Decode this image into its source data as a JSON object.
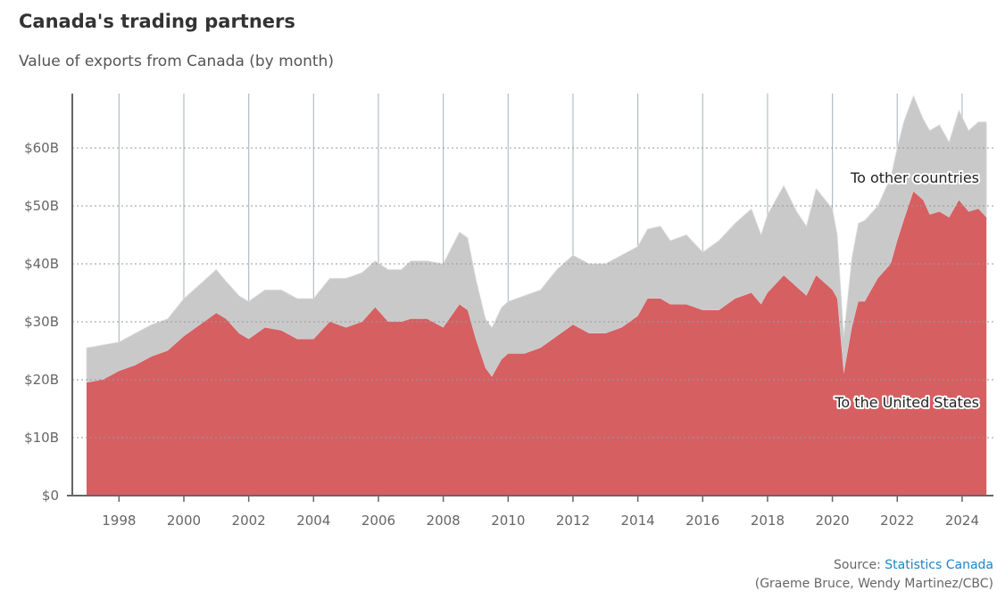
{
  "header": {
    "title": "Canada's trading partners",
    "subtitle": "Value of exports from Canada (by month)"
  },
  "source": {
    "prefix": "Source: ",
    "link_label": "Statistics Canada",
    "credit": "(Graeme Bruce, Wendy Martinez/CBC)"
  },
  "colors": {
    "us_area": "#d65f62",
    "other_area": "#c9c9c9",
    "other_area_light": "#dddddd",
    "axis": "#666666",
    "gridline": "#999999",
    "vertical_grid": "#b4bcc4",
    "link": "#1a85c7"
  },
  "chart_data": {
    "type": "area",
    "stacked": true,
    "x_unit": "year (decimal)",
    "xlim": [
      1997,
      2024.75
    ],
    "ylim": [
      0,
      70
    ],
    "y_unit": "billions CAD",
    "x_ticks": [
      1998,
      2000,
      2002,
      2004,
      2006,
      2008,
      2010,
      2012,
      2014,
      2016,
      2018,
      2020,
      2022,
      2024
    ],
    "x_tick_labels": [
      "1998",
      "2000",
      "2002",
      "2004",
      "2006",
      "2008",
      "2010",
      "2012",
      "2014",
      "2016",
      "2018",
      "2020",
      "2022",
      "2024"
    ],
    "y_ticks": [
      0,
      10,
      20,
      30,
      40,
      50,
      60
    ],
    "y_tick_labels": [
      "$0",
      "$10B",
      "$20B",
      "$30B",
      "$40B",
      "$50B",
      "$60B"
    ],
    "grid": {
      "horizontal": "dashed",
      "vertical": "solid at even years"
    },
    "annotations": [
      {
        "text": "To other countries",
        "series": "other"
      },
      {
        "text": "To the United States",
        "series": "us"
      }
    ],
    "series": [
      {
        "id": "us",
        "points": [
          [
            1997.0,
            19.5
          ],
          [
            1997.5,
            20.0
          ],
          [
            1998.0,
            21.5
          ],
          [
            1998.5,
            22.5
          ],
          [
            1999.0,
            24.0
          ],
          [
            1999.5,
            25.0
          ],
          [
            2000.0,
            27.5
          ],
          [
            2000.5,
            29.5
          ],
          [
            2001.0,
            31.5
          ],
          [
            2001.3,
            30.5
          ],
          [
            2001.7,
            28.0
          ],
          [
            2002.0,
            27.0
          ],
          [
            2002.5,
            29.0
          ],
          [
            2003.0,
            28.5
          ],
          [
            2003.5,
            27.0
          ],
          [
            2004.0,
            27.0
          ],
          [
            2004.5,
            30.0
          ],
          [
            2005.0,
            29.0
          ],
          [
            2005.5,
            30.0
          ],
          [
            2005.9,
            32.5
          ],
          [
            2006.3,
            30.0
          ],
          [
            2006.7,
            30.0
          ],
          [
            2007.0,
            30.5
          ],
          [
            2007.5,
            30.5
          ],
          [
            2008.0,
            29.0
          ],
          [
            2008.5,
            33.0
          ],
          [
            2008.75,
            32.0
          ],
          [
            2009.0,
            27.0
          ],
          [
            2009.3,
            22.0
          ],
          [
            2009.5,
            20.5
          ],
          [
            2009.8,
            23.5
          ],
          [
            2010.0,
            24.5
          ],
          [
            2010.5,
            24.5
          ],
          [
            2011.0,
            25.5
          ],
          [
            2011.5,
            27.5
          ],
          [
            2012.0,
            29.5
          ],
          [
            2012.5,
            28.0
          ],
          [
            2013.0,
            28.0
          ],
          [
            2013.5,
            29.0
          ],
          [
            2014.0,
            31.0
          ],
          [
            2014.3,
            34.0
          ],
          [
            2014.7,
            34.0
          ],
          [
            2015.0,
            33.0
          ],
          [
            2015.5,
            33.0
          ],
          [
            2016.0,
            32.0
          ],
          [
            2016.5,
            32.0
          ],
          [
            2017.0,
            34.0
          ],
          [
            2017.5,
            35.0
          ],
          [
            2017.8,
            33.0
          ],
          [
            2018.0,
            35.0
          ],
          [
            2018.5,
            38.0
          ],
          [
            2018.9,
            36.0
          ],
          [
            2019.2,
            34.5
          ],
          [
            2019.5,
            38.0
          ],
          [
            2020.0,
            35.5
          ],
          [
            2020.15,
            34.0
          ],
          [
            2020.35,
            21.0
          ],
          [
            2020.6,
            29.0
          ],
          [
            2020.8,
            33.5
          ],
          [
            2021.0,
            33.5
          ],
          [
            2021.4,
            37.5
          ],
          [
            2021.8,
            40.0
          ],
          [
            2022.0,
            44.0
          ],
          [
            2022.2,
            47.5
          ],
          [
            2022.5,
            52.5
          ],
          [
            2022.8,
            51.0
          ],
          [
            2023.0,
            48.5
          ],
          [
            2023.3,
            49.0
          ],
          [
            2023.6,
            48.0
          ],
          [
            2023.9,
            51.0
          ],
          [
            2024.2,
            49.0
          ],
          [
            2024.5,
            49.5
          ],
          [
            2024.75,
            48.0
          ]
        ]
      },
      {
        "id": "other",
        "points": [
          [
            1997.0,
            25.5
          ],
          [
            1997.5,
            26.0
          ],
          [
            1998.0,
            26.5
          ],
          [
            1998.5,
            28.0
          ],
          [
            1999.0,
            29.5
          ],
          [
            1999.5,
            30.5
          ],
          [
            2000.0,
            34.0
          ],
          [
            2000.5,
            36.5
          ],
          [
            2001.0,
            39.0
          ],
          [
            2001.3,
            37.0
          ],
          [
            2001.7,
            34.5
          ],
          [
            2002.0,
            33.5
          ],
          [
            2002.5,
            35.5
          ],
          [
            2003.0,
            35.5
          ],
          [
            2003.5,
            34.0
          ],
          [
            2004.0,
            34.0
          ],
          [
            2004.5,
            37.5
          ],
          [
            2005.0,
            37.5
          ],
          [
            2005.5,
            38.5
          ],
          [
            2005.9,
            40.5
          ],
          [
            2006.3,
            39.0
          ],
          [
            2006.7,
            39.0
          ],
          [
            2007.0,
            40.5
          ],
          [
            2007.5,
            40.5
          ],
          [
            2008.0,
            40.0
          ],
          [
            2008.5,
            45.5
          ],
          [
            2008.75,
            44.5
          ],
          [
            2009.0,
            37.5
          ],
          [
            2009.3,
            30.5
          ],
          [
            2009.5,
            29.0
          ],
          [
            2009.8,
            32.5
          ],
          [
            2010.0,
            33.5
          ],
          [
            2010.5,
            34.5
          ],
          [
            2011.0,
            35.5
          ],
          [
            2011.5,
            39.0
          ],
          [
            2012.0,
            41.5
          ],
          [
            2012.5,
            40.0
          ],
          [
            2013.0,
            40.0
          ],
          [
            2013.5,
            41.5
          ],
          [
            2014.0,
            43.0
          ],
          [
            2014.3,
            46.0
          ],
          [
            2014.7,
            46.5
          ],
          [
            2015.0,
            44.0
          ],
          [
            2015.5,
            45.0
          ],
          [
            2016.0,
            42.0
          ],
          [
            2016.5,
            44.0
          ],
          [
            2017.0,
            47.0
          ],
          [
            2017.5,
            49.5
          ],
          [
            2017.8,
            45.0
          ],
          [
            2018.0,
            48.5
          ],
          [
            2018.5,
            53.5
          ],
          [
            2018.9,
            49.0
          ],
          [
            2019.2,
            46.5
          ],
          [
            2019.5,
            53.0
          ],
          [
            2020.0,
            49.5
          ],
          [
            2020.15,
            45.0
          ],
          [
            2020.35,
            27.5
          ],
          [
            2020.6,
            41.0
          ],
          [
            2020.8,
            47.0
          ],
          [
            2021.0,
            47.5
          ],
          [
            2021.4,
            50.0
          ],
          [
            2021.8,
            55.0
          ],
          [
            2022.0,
            60.0
          ],
          [
            2022.2,
            64.5
          ],
          [
            2022.5,
            69.0
          ],
          [
            2022.8,
            65.0
          ],
          [
            2023.0,
            63.0
          ],
          [
            2023.3,
            64.0
          ],
          [
            2023.6,
            61.0
          ],
          [
            2023.9,
            66.5
          ],
          [
            2024.2,
            63.0
          ],
          [
            2024.5,
            64.5
          ],
          [
            2024.75,
            64.5
          ]
        ]
      }
    ]
  }
}
